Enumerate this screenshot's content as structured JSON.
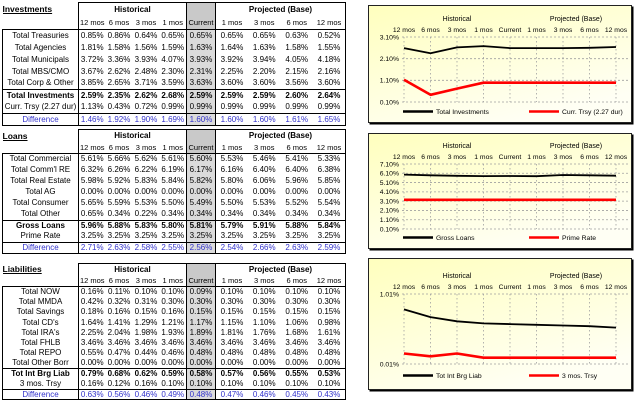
{
  "report": {
    "current_label": "Current",
    "historical_label": "Historical",
    "projected_label": "Projected (Base)",
    "historical_months": [
      "12 mos",
      "6 mos",
      "3 mos",
      "1 mos"
    ],
    "projected_months": [
      "1 mos",
      "3 mos",
      "6 mos",
      "12 mos"
    ]
  },
  "colors": {
    "difference_text": "#3333CC",
    "current_header_fill": "#C9C9C9",
    "current_column_fill": "#DBDBDB",
    "series_black": "#000000",
    "series_red": "#FF0000",
    "chart_bg_top": "#FFFFBE",
    "chart_bg_bottom": "#FFFFF4",
    "gridline": "#A0A0A0"
  },
  "tables": [
    {
      "title": "Investments",
      "rows": [
        {
          "label": "Total Treasuries",
          "style": "normal",
          "values": [
            "0.85%",
            "0.86%",
            "0.64%",
            "0.65%",
            "0.65%",
            "0.65%",
            "0.65%",
            "0.63%",
            "0.52%"
          ]
        },
        {
          "label": "Total Agencies",
          "style": "normal",
          "values": [
            "1.81%",
            "1.58%",
            "1.56%",
            "1.59%",
            "1.63%",
            "1.64%",
            "1.63%",
            "1.58%",
            "1.55%"
          ]
        },
        {
          "label": "Total Municipals",
          "style": "normal",
          "values": [
            "3.72%",
            "3.36%",
            "3.93%",
            "4.07%",
            "3.93%",
            "3.92%",
            "3.94%",
            "4.05%",
            "4.18%"
          ]
        },
        {
          "label": "Total MBS/CMO",
          "style": "normal",
          "values": [
            "3.67%",
            "2.62%",
            "2.48%",
            "2.30%",
            "2.31%",
            "2.25%",
            "2.20%",
            "2.15%",
            "2.16%"
          ]
        },
        {
          "label": "Total Corp & Other",
          "style": "normal",
          "values": [
            "3.85%",
            "2.65%",
            "3.71%",
            "3.59%",
            "3.63%",
            "3.60%",
            "3.60%",
            "3.56%",
            "3.60%"
          ]
        },
        {
          "label": "Total Investments",
          "style": "total",
          "values": [
            "2.59%",
            "2.35%",
            "2.62%",
            "2.68%",
            "2.59%",
            "2.59%",
            "2.59%",
            "2.60%",
            "2.64%"
          ]
        },
        {
          "label": "Curr. Trsy (2.27 dur)",
          "style": "normal",
          "values": [
            "1.13%",
            "0.43%",
            "0.72%",
            "0.99%",
            "0.99%",
            "0.99%",
            "0.99%",
            "0.99%",
            "0.99%"
          ]
        },
        {
          "label": "Difference",
          "style": "difference",
          "values": [
            "1.46%",
            "1.92%",
            "1.90%",
            "1.69%",
            "1.60%",
            "1.60%",
            "1.60%",
            "1.61%",
            "1.65%"
          ]
        }
      ]
    },
    {
      "title": "Loans",
      "rows": [
        {
          "label": "Total Commercial",
          "style": "normal",
          "values": [
            "5.61%",
            "5.66%",
            "5.62%",
            "5.61%",
            "5.60%",
            "5.53%",
            "5.46%",
            "5.41%",
            "5.33%"
          ]
        },
        {
          "label": "Total Comm'l RE",
          "style": "normal",
          "values": [
            "6.32%",
            "6.26%",
            "6.22%",
            "6.19%",
            "6.17%",
            "6.16%",
            "6.40%",
            "6.40%",
            "6.38%"
          ]
        },
        {
          "label": "Total Real Estate",
          "style": "normal",
          "values": [
            "5.98%",
            "5.92%",
            "5.83%",
            "5.84%",
            "5.82%",
            "5.80%",
            "6.06%",
            "5.96%",
            "5.85%"
          ]
        },
        {
          "label": "Total AG",
          "style": "normal",
          "values": [
            "0.00%",
            "0.00%",
            "0.00%",
            "0.00%",
            "0.00%",
            "0.00%",
            "0.00%",
            "0.00%",
            "0.00%"
          ]
        },
        {
          "label": "Total Consumer",
          "style": "normal",
          "values": [
            "5.65%",
            "5.59%",
            "5.53%",
            "5.50%",
            "5.49%",
            "5.50%",
            "5.53%",
            "5.52%",
            "5.54%"
          ]
        },
        {
          "label": "Total Other",
          "style": "normal",
          "values": [
            "0.65%",
            "0.34%",
            "0.22%",
            "0.34%",
            "0.34%",
            "0.34%",
            "0.34%",
            "0.34%",
            "0.34%"
          ]
        },
        {
          "label": "Gross Loans",
          "style": "total",
          "values": [
            "5.96%",
            "5.88%",
            "5.83%",
            "5.80%",
            "5.81%",
            "5.79%",
            "5.91%",
            "5.88%",
            "5.84%"
          ]
        },
        {
          "label": "Prime Rate",
          "style": "normal",
          "values": [
            "3.25%",
            "3.25%",
            "3.25%",
            "3.25%",
            "3.25%",
            "3.25%",
            "3.25%",
            "3.25%",
            "3.25%"
          ]
        },
        {
          "label": "Difference",
          "style": "difference",
          "values": [
            "2.71%",
            "2.63%",
            "2.58%",
            "2.55%",
            "2.56%",
            "2.54%",
            "2.66%",
            "2.63%",
            "2.59%"
          ]
        }
      ]
    },
    {
      "title": "Liabilities",
      "rows": [
        {
          "label": "Total NOW",
          "style": "normal",
          "values": [
            "0.16%",
            "0.11%",
            "0.10%",
            "0.10%",
            "0.09%",
            "0.10%",
            "0.10%",
            "0.10%",
            "0.10%"
          ]
        },
        {
          "label": "Total MMDA",
          "style": "normal",
          "values": [
            "0.42%",
            "0.32%",
            "0.31%",
            "0.30%",
            "0.30%",
            "0.30%",
            "0.30%",
            "0.30%",
            "0.30%"
          ]
        },
        {
          "label": "Total Savings",
          "style": "normal",
          "values": [
            "0.18%",
            "0.16%",
            "0.15%",
            "0.16%",
            "0.15%",
            "0.15%",
            "0.15%",
            "0.15%",
            "0.15%"
          ]
        },
        {
          "label": "Total CD's",
          "style": "normal",
          "values": [
            "1.64%",
            "1.41%",
            "1.29%",
            "1.21%",
            "1.17%",
            "1.15%",
            "1.10%",
            "1.06%",
            "0.98%"
          ]
        },
        {
          "label": "Total IRA's",
          "style": "normal",
          "values": [
            "2.25%",
            "2.04%",
            "1.98%",
            "1.93%",
            "1.89%",
            "1.81%",
            "1.76%",
            "1.68%",
            "1.61%"
          ]
        },
        {
          "label": "Total FHLB",
          "style": "normal",
          "values": [
            "3.46%",
            "3.46%",
            "3.46%",
            "3.46%",
            "3.46%",
            "3.46%",
            "3.46%",
            "3.46%",
            "3.46%"
          ]
        },
        {
          "label": "Total REPO",
          "style": "normal",
          "values": [
            "0.55%",
            "0.47%",
            "0.44%",
            "0.46%",
            "0.48%",
            "0.48%",
            "0.48%",
            "0.48%",
            "0.48%"
          ]
        },
        {
          "label": "Total Other Borr",
          "style": "normal",
          "values": [
            "0.00%",
            "0.00%",
            "0.00%",
            "0.00%",
            "0.00%",
            "0.00%",
            "0.00%",
            "0.00%",
            "0.00%"
          ]
        },
        {
          "label": "Tot Int Brg Liab",
          "style": "total",
          "values": [
            "0.79%",
            "0.68%",
            "0.62%",
            "0.59%",
            "0.58%",
            "0.57%",
            "0.56%",
            "0.55%",
            "0.53%"
          ]
        },
        {
          "label": "3 mos. Trsy",
          "style": "normal",
          "values": [
            "0.16%",
            "0.12%",
            "0.16%",
            "0.10%",
            "0.10%",
            "0.10%",
            "0.10%",
            "0.10%",
            "0.10%"
          ]
        },
        {
          "label": "Difference",
          "style": "difference",
          "values": [
            "0.63%",
            "0.56%",
            "0.46%",
            "0.49%",
            "0.48%",
            "0.47%",
            "0.46%",
            "0.45%",
            "0.43%"
          ]
        }
      ]
    }
  ],
  "chart_data": [
    {
      "type": "line",
      "section_left": "Historical",
      "section_right": "Projected (Base)",
      "x_labels": [
        "12 mos",
        "6 mos",
        "3 mos",
        "1 mos",
        "Current",
        "1 mos",
        "3 mos",
        "6 mos",
        "12 mos"
      ],
      "ylim": [
        0.1,
        3.1
      ],
      "ystep": 1.0,
      "grid": true,
      "legend_position": "bottom",
      "series": [
        {
          "name": "Total Investments",
          "color": "#000000",
          "values": [
            2.59,
            2.35,
            2.62,
            2.68,
            2.59,
            2.59,
            2.59,
            2.6,
            2.64
          ]
        },
        {
          "name": "Curr. Trsy (2.27 dur)",
          "color": "#FF0000",
          "values": [
            1.13,
            0.43,
            0.72,
            0.99,
            0.99,
            0.99,
            0.99,
            0.99,
            0.99
          ]
        }
      ]
    },
    {
      "type": "line",
      "section_left": "Historical",
      "section_right": "Projected (Base)",
      "x_labels": [
        "12 mos",
        "6 mos",
        "3 mos",
        "1 mos",
        "Current",
        "1 mos",
        "3 mos",
        "6 mos",
        "12 mos"
      ],
      "ylim": [
        0.1,
        7.1
      ],
      "ystep": 1.0,
      "grid": true,
      "legend_position": "bottom",
      "series": [
        {
          "name": "Gross Loans",
          "color": "#000000",
          "values": [
            5.96,
            5.88,
            5.83,
            5.8,
            5.81,
            5.79,
            5.91,
            5.88,
            5.84
          ]
        },
        {
          "name": "Prime Rate",
          "color": "#FF0000",
          "values": [
            3.25,
            3.25,
            3.25,
            3.25,
            3.25,
            3.25,
            3.25,
            3.25,
            3.25
          ]
        }
      ]
    },
    {
      "type": "line",
      "section_left": "Historical",
      "section_right": "Projected (Base)",
      "x_labels": [
        "12 mos",
        "6 mos",
        "3 mos",
        "1 mos",
        "Current",
        "1 mos",
        "3 mos",
        "6 mos",
        "12 mos"
      ],
      "ylim": [
        0.01,
        1.01
      ],
      "ystep": 1.0,
      "grid": true,
      "legend_position": "bottom",
      "series": [
        {
          "name": "Tot Int Brg Liab",
          "color": "#000000",
          "values": [
            0.79,
            0.68,
            0.62,
            0.59,
            0.58,
            0.57,
            0.56,
            0.55,
            0.53
          ]
        },
        {
          "name": "3 mos. Trsy",
          "color": "#FF0000",
          "values": [
            0.16,
            0.12,
            0.16,
            0.1,
            0.1,
            0.1,
            0.1,
            0.1,
            0.1
          ]
        }
      ]
    }
  ]
}
